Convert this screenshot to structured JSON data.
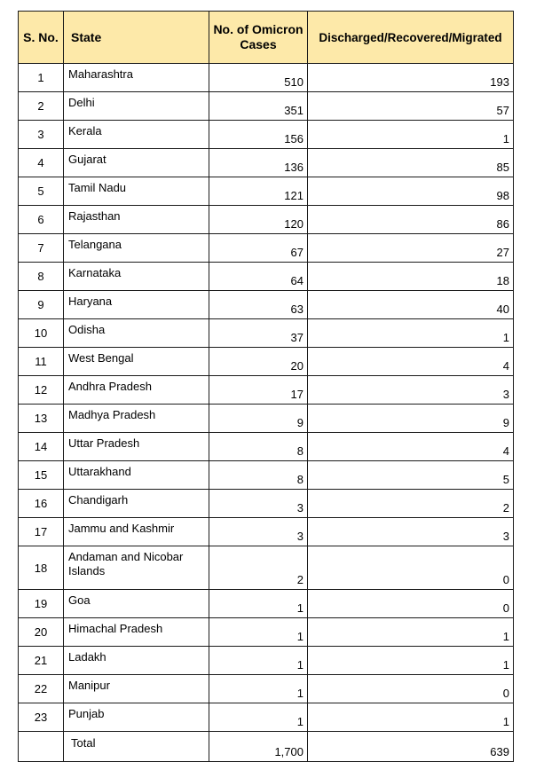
{
  "headers": {
    "sno": "S. No.",
    "state": "State",
    "cases": "No. of Omicron Cases",
    "discharged": "Discharged/Recovered/Migrated"
  },
  "rows": [
    {
      "sno": "1",
      "state": "Maharashtra",
      "cases": "510",
      "discharged": "193"
    },
    {
      "sno": "2",
      "state": "Delhi",
      "cases": "351",
      "discharged": "57"
    },
    {
      "sno": "3",
      "state": "Kerala",
      "cases": "156",
      "discharged": "1"
    },
    {
      "sno": "4",
      "state": "Gujarat",
      "cases": "136",
      "discharged": "85"
    },
    {
      "sno": "5",
      "state": "Tamil Nadu",
      "cases": "121",
      "discharged": "98"
    },
    {
      "sno": "6",
      "state": "Rajasthan",
      "cases": "120",
      "discharged": "86"
    },
    {
      "sno": "7",
      "state": "Telangana",
      "cases": "67",
      "discharged": "27"
    },
    {
      "sno": "8",
      "state": "Karnataka",
      "cases": "64",
      "discharged": "18"
    },
    {
      "sno": "9",
      "state": "Haryana",
      "cases": "63",
      "discharged": "40"
    },
    {
      "sno": "10",
      "state": "Odisha",
      "cases": "37",
      "discharged": "1"
    },
    {
      "sno": "11",
      "state": "West Bengal",
      "cases": "20",
      "discharged": "4"
    },
    {
      "sno": "12",
      "state": "Andhra Pradesh",
      "cases": "17",
      "discharged": "3"
    },
    {
      "sno": "13",
      "state": "Madhya Pradesh",
      "cases": "9",
      "discharged": "9"
    },
    {
      "sno": "14",
      "state": "Uttar Pradesh",
      "cases": "8",
      "discharged": "4"
    },
    {
      "sno": "15",
      "state": "Uttarakhand",
      "cases": "8",
      "discharged": "5"
    },
    {
      "sno": "16",
      "state": "Chandigarh",
      "cases": "3",
      "discharged": "2"
    },
    {
      "sno": "17",
      "state": "Jammu and Kashmir",
      "cases": "3",
      "discharged": "3"
    },
    {
      "sno": "18",
      "state": "Andaman and Nicobar Islands",
      "cases": "2",
      "discharged": "0"
    },
    {
      "sno": "19",
      "state": "Goa",
      "cases": "1",
      "discharged": "0"
    },
    {
      "sno": "20",
      "state": "Himachal Pradesh",
      "cases": "1",
      "discharged": "1"
    },
    {
      "sno": "21",
      "state": "Ladakh",
      "cases": "1",
      "discharged": "1"
    },
    {
      "sno": "22",
      "state": "Manipur",
      "cases": "1",
      "discharged": "0"
    },
    {
      "sno": "23",
      "state": "Punjab",
      "cases": "1",
      "discharged": "1"
    }
  ],
  "total": {
    "sno": "",
    "label": "Total",
    "cases": "1,700",
    "discharged": "639"
  },
  "colors": {
    "header_bg": "#fde9a9",
    "border": "#1a1a1a"
  }
}
